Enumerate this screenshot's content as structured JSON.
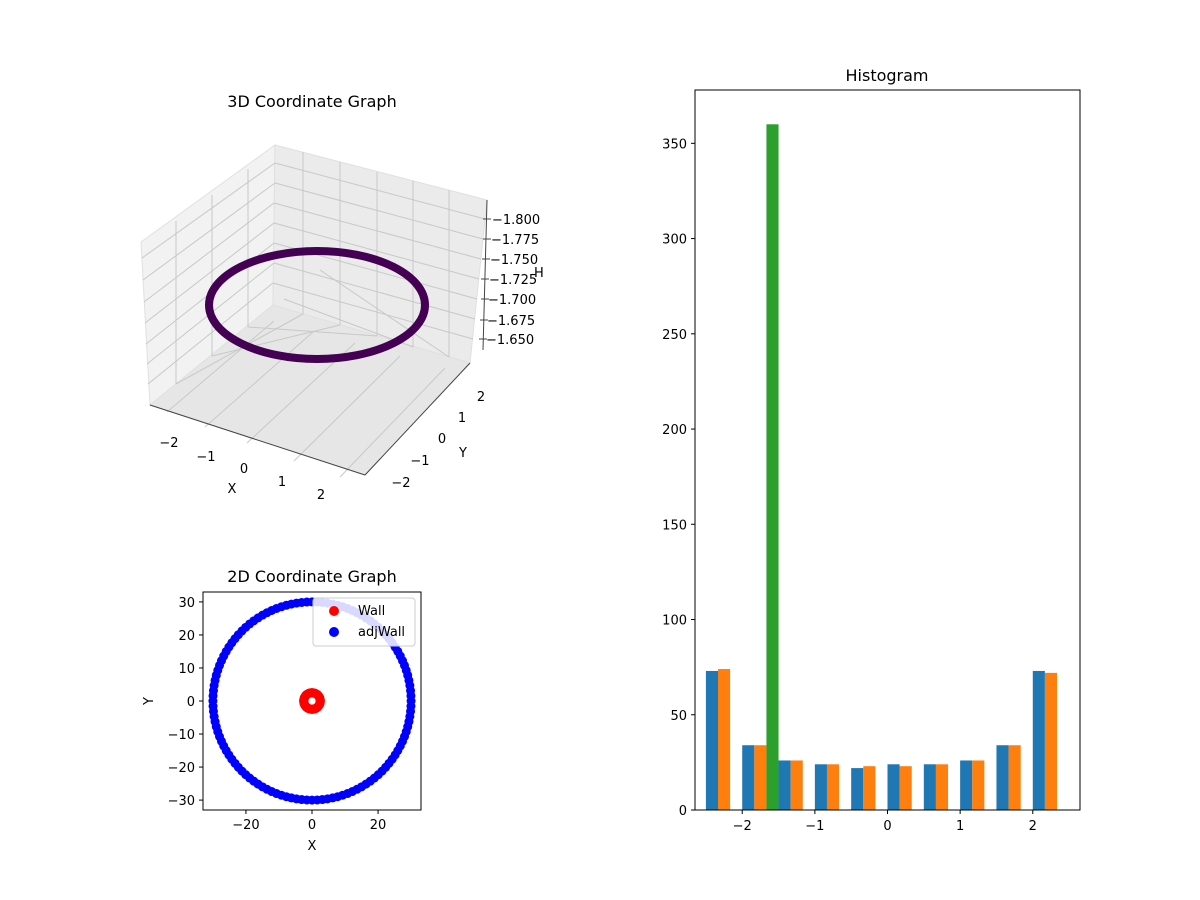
{
  "colors": {
    "wall": "#ff0000",
    "adj_wall": "#0000ff",
    "ring": "#440154",
    "hist_blue": "#1f77b4",
    "hist_orange": "#ff7f0e",
    "hist_green": "#2ca02c"
  },
  "chart_data": [
    {
      "type": "scatter3d",
      "title": "3D Coordinate Graph",
      "xlabel": "X",
      "ylabel": "Y",
      "zlabel": "H",
      "x_ticks": [
        "−2",
        "−1",
        "0",
        "1",
        "2"
      ],
      "y_ticks": [
        "−2",
        "−1",
        "0",
        "1",
        "2"
      ],
      "z_ticks": [
        "−1.800",
        "−1.775",
        "−1.750",
        "−1.725",
        "−1.700",
        "−1.675",
        "−1.650"
      ],
      "zlim": [
        -1.81,
        -1.64
      ],
      "series": [
        {
          "name": "ring",
          "shape": "circle",
          "radius": 1.5,
          "center": [
            0,
            0
          ],
          "z": -1.725
        }
      ]
    },
    {
      "type": "scatter",
      "title": "2D Coordinate Graph",
      "xlabel": "X",
      "ylabel": "Y",
      "xlim": [
        -33,
        33
      ],
      "ylim": [
        -33,
        33
      ],
      "x_ticks": [
        -20,
        0,
        20
      ],
      "y_ticks": [
        -30,
        -20,
        -10,
        0,
        10,
        20,
        30
      ],
      "legend": [
        "Wall",
        "adjWall"
      ],
      "legend_position": "top-right",
      "series": [
        {
          "name": "Wall",
          "shape": "circle",
          "radius": 2.5,
          "center": [
            0,
            0
          ],
          "points": 120
        },
        {
          "name": "adjWall",
          "shape": "circle",
          "radius": 30,
          "center": [
            0,
            0
          ],
          "points": 120
        }
      ]
    },
    {
      "type": "bar",
      "title": "Histogram",
      "xlim": [
        -2.65,
        2.65
      ],
      "ylim": [
        0,
        378
      ],
      "x_ticks": [
        -2,
        -1,
        0,
        1,
        2
      ],
      "y_ticks": [
        0,
        50,
        100,
        150,
        200,
        250,
        300,
        350
      ],
      "bin_edges": [
        -2.5,
        -2.0,
        -1.5,
        -1.0,
        -0.5,
        0.0,
        0.5,
        1.0,
        1.5,
        2.0,
        2.5
      ],
      "series": [
        {
          "name": "blue",
          "values": [
            73,
            34,
            26,
            24,
            22,
            24,
            24,
            26,
            34,
            73
          ]
        },
        {
          "name": "orange",
          "values": [
            74,
            34,
            26,
            24,
            23,
            23,
            24,
            26,
            34,
            72
          ]
        },
        {
          "name": "green",
          "values": [
            0,
            360,
            0,
            0,
            0,
            0,
            0,
            0,
            0,
            0
          ]
        }
      ]
    }
  ]
}
